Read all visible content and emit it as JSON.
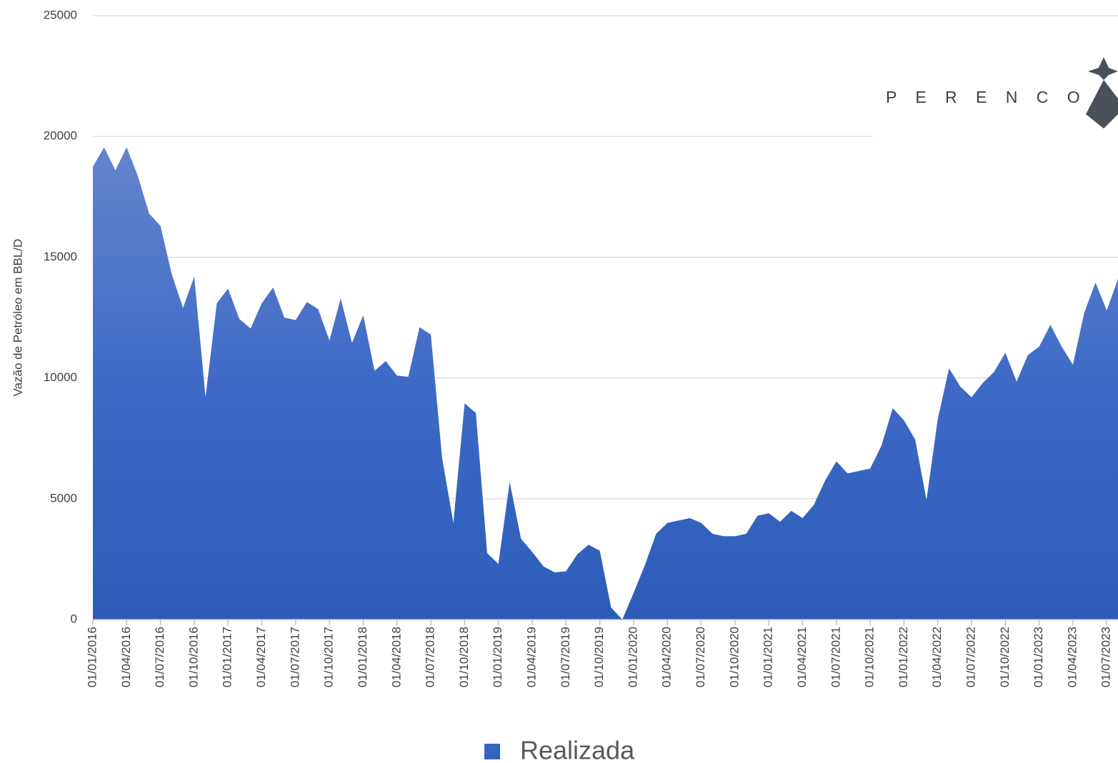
{
  "chart_data": {
    "type": "area",
    "y_axis_label": "Vazão de Petróleo em BBL/D",
    "logo": "P E R E N C O",
    "categories": [
      "01/01/2016",
      null,
      null,
      "01/04/2016",
      null,
      null,
      "01/07/2016",
      null,
      null,
      "01/10/2016",
      null,
      null,
      "01/01/2017",
      null,
      null,
      "01/04/2017",
      null,
      null,
      "01/07/2017",
      null,
      null,
      "01/10/2017",
      null,
      null,
      "01/01/2018",
      null,
      null,
      "01/04/2018",
      null,
      null,
      "01/07/2018",
      null,
      null,
      "01/10/2018",
      null,
      null,
      "01/01/2019",
      null,
      null,
      "01/04/2019",
      null,
      null,
      "01/07/2019",
      null,
      null,
      "01/10/2019",
      null,
      null,
      "01/01/2020",
      null,
      null,
      "01/04/2020",
      null,
      null,
      "01/07/2020",
      null,
      null,
      "01/10/2020",
      null,
      null,
      "01/01/2021",
      null,
      null,
      "01/04/2021",
      null,
      null,
      "01/07/2021",
      null,
      null,
      "01/10/2021",
      null,
      null,
      "01/01/2022",
      null,
      null,
      "01/04/2022",
      null,
      null,
      "01/07/2022",
      null,
      null,
      "01/10/2022",
      null,
      null,
      "01/01/2023",
      null,
      null,
      "01/04/2023",
      null,
      null,
      "01/07/2023",
      null
    ],
    "series": [
      {
        "name": "Realizada",
        "color": "#3563c2",
        "values": [
          18750,
          19550,
          18600,
          19550,
          18350,
          16800,
          16300,
          14300,
          12900,
          14200,
          9200,
          13100,
          13700,
          12450,
          12050,
          13100,
          13750,
          12500,
          12400,
          13150,
          12850,
          11550,
          13300,
          11450,
          12600,
          10300,
          10700,
          10100,
          10050,
          12100,
          11800,
          6700,
          4000,
          8950,
          8550,
          2750,
          2300,
          5700,
          3350,
          2800,
          2200,
          1950,
          2000,
          2700,
          3100,
          2850,
          500,
          0,
          1100,
          2250,
          3550,
          4000,
          4100,
          4200,
          4000,
          3550,
          3450,
          3450,
          3550,
          4300,
          4400,
          4050,
          4500,
          4200,
          4750,
          5750,
          6550,
          6050,
          6150,
          6250,
          7200,
          8750,
          8250,
          7450,
          4950,
          8300,
          10400,
          9650,
          9200,
          9800,
          10250,
          11050,
          9850,
          10950,
          11300,
          12200,
          11300,
          10550,
          12700,
          13950,
          12800,
          14100
        ]
      }
    ],
    "ylim": [
      0,
      25000
    ],
    "yticks": [
      0,
      5000,
      10000,
      15000,
      20000,
      25000
    ],
    "grid": true,
    "legend": "bottom"
  }
}
